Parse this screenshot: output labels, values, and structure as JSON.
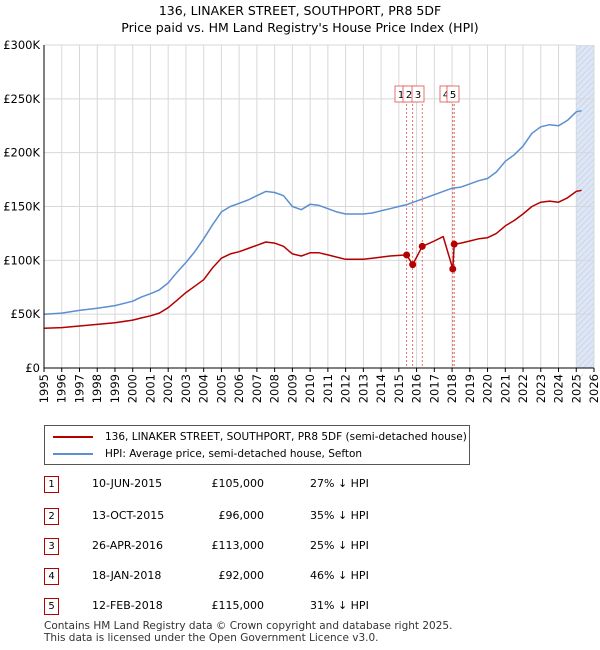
{
  "title": {
    "line1": "136, LINAKER STREET, SOUTHPORT, PR8 5DF",
    "line2": "Price paid vs. HM Land Registry's House Price Index (HPI)"
  },
  "colors": {
    "property": "#b50000",
    "hpi": "#5b8fd0",
    "shade": "#dde6f5",
    "grid": "#d8d8d8",
    "vline": "#e05050"
  },
  "chart_data": {
    "type": "line",
    "x_range": [
      1995,
      2026
    ],
    "y_range": [
      0,
      300000
    ],
    "y_ticks": [
      0,
      50000,
      100000,
      150000,
      200000,
      250000,
      300000
    ],
    "y_tick_labels": [
      "£0",
      "£50K",
      "£100K",
      "£150K",
      "£200K",
      "£250K",
      "£300K"
    ],
    "x_ticks": [
      1995,
      1996,
      1997,
      1998,
      1999,
      2000,
      2001,
      2002,
      2003,
      2004,
      2005,
      2006,
      2007,
      2008,
      2009,
      2010,
      2011,
      2012,
      2013,
      2014,
      2015,
      2016,
      2017,
      2018,
      2019,
      2020,
      2021,
      2022,
      2023,
      2024,
      2025,
      2026
    ],
    "x_tick_labels": [
      "1995",
      "1996",
      "1997",
      "1998",
      "1999",
      "2000",
      "2001",
      "2002",
      "2003",
      "2004",
      "2005",
      "2006",
      "2007",
      "2008",
      "2009",
      "2010",
      "2011",
      "2012",
      "2013",
      "2014",
      "2015",
      "2016",
      "2017",
      "2018",
      "2019",
      "2020",
      "2021",
      "2022",
      "2023",
      "2024",
      "2025",
      "2026"
    ],
    "grid": true,
    "shaded_future_from": 2025.0,
    "series": [
      {
        "name": "HPI: Average price, semi-detached house, Sefton",
        "color": "#5b8fd0",
        "points": [
          [
            1995.0,
            50000
          ],
          [
            1996.0,
            51000
          ],
          [
            1997.0,
            53500
          ],
          [
            1998.0,
            55500
          ],
          [
            1999.0,
            58000
          ],
          [
            2000.0,
            62000
          ],
          [
            2000.5,
            66000
          ],
          [
            2001.0,
            69000
          ],
          [
            2001.5,
            72500
          ],
          [
            2002.0,
            79000
          ],
          [
            2002.5,
            89000
          ],
          [
            2003.0,
            98000
          ],
          [
            2003.5,
            108000
          ],
          [
            2004.0,
            120000
          ],
          [
            2004.5,
            133000
          ],
          [
            2005.0,
            145000
          ],
          [
            2005.5,
            150000
          ],
          [
            2006.0,
            153000
          ],
          [
            2006.5,
            156000
          ],
          [
            2007.0,
            160000
          ],
          [
            2007.5,
            164000
          ],
          [
            2008.0,
            163000
          ],
          [
            2008.5,
            160000
          ],
          [
            2009.0,
            150000
          ],
          [
            2009.5,
            147000
          ],
          [
            2010.0,
            152000
          ],
          [
            2010.5,
            151000
          ],
          [
            2011.0,
            148000
          ],
          [
            2011.5,
            145000
          ],
          [
            2012.0,
            143000
          ],
          [
            2012.5,
            143000
          ],
          [
            2013.0,
            143000
          ],
          [
            2013.5,
            144000
          ],
          [
            2014.0,
            146000
          ],
          [
            2014.5,
            148000
          ],
          [
            2015.0,
            150000
          ],
          [
            2015.5,
            152000
          ],
          [
            2016.0,
            155000
          ],
          [
            2016.5,
            158000
          ],
          [
            2017.0,
            161000
          ],
          [
            2017.5,
            164000
          ],
          [
            2018.0,
            167000
          ],
          [
            2018.5,
            168000
          ],
          [
            2019.0,
            171000
          ],
          [
            2019.5,
            174000
          ],
          [
            2020.0,
            176000
          ],
          [
            2020.5,
            182000
          ],
          [
            2021.0,
            192000
          ],
          [
            2021.5,
            198000
          ],
          [
            2022.0,
            206000
          ],
          [
            2022.5,
            218000
          ],
          [
            2023.0,
            224000
          ],
          [
            2023.5,
            226000
          ],
          [
            2024.0,
            225000
          ],
          [
            2024.5,
            230000
          ],
          [
            2025.0,
            238000
          ],
          [
            2025.3,
            239000
          ]
        ]
      },
      {
        "name": "136, LINAKER STREET, SOUTHPORT, PR8 5DF (semi-detached house)",
        "color": "#b50000",
        "points": [
          [
            1995.0,
            37000
          ],
          [
            1996.0,
            37500
          ],
          [
            1997.0,
            39000
          ],
          [
            1998.0,
            40500
          ],
          [
            1999.0,
            42000
          ],
          [
            2000.0,
            44500
          ],
          [
            2000.5,
            46500
          ],
          [
            2001.0,
            48500
          ],
          [
            2001.5,
            51000
          ],
          [
            2002.0,
            56000
          ],
          [
            2002.5,
            63000
          ],
          [
            2003.0,
            70000
          ],
          [
            2003.5,
            76000
          ],
          [
            2004.0,
            82000
          ],
          [
            2004.5,
            93000
          ],
          [
            2005.0,
            102000
          ],
          [
            2005.5,
            106000
          ],
          [
            2006.0,
            108000
          ],
          [
            2006.5,
            111000
          ],
          [
            2007.0,
            114000
          ],
          [
            2007.5,
            117000
          ],
          [
            2008.0,
            116000
          ],
          [
            2008.5,
            113000
          ],
          [
            2009.0,
            106000
          ],
          [
            2009.5,
            104000
          ],
          [
            2010.0,
            107000
          ],
          [
            2010.5,
            107000
          ],
          [
            2011.0,
            105000
          ],
          [
            2011.5,
            103000
          ],
          [
            2012.0,
            101000
          ],
          [
            2012.5,
            101000
          ],
          [
            2013.0,
            101000
          ],
          [
            2013.5,
            102000
          ],
          [
            2014.0,
            103000
          ],
          [
            2014.5,
            104000
          ],
          [
            2015.44,
            105000
          ],
          [
            2015.78,
            96000
          ],
          [
            2016.32,
            113000
          ],
          [
            2016.6,
            115000
          ],
          [
            2017.0,
            118000
          ],
          [
            2017.5,
            122000
          ],
          [
            2018.04,
            92000
          ],
          [
            2018.12,
            115000
          ],
          [
            2018.5,
            116000
          ],
          [
            2019.0,
            118000
          ],
          [
            2019.5,
            120000
          ],
          [
            2020.0,
            121000
          ],
          [
            2020.5,
            125000
          ],
          [
            2021.0,
            132000
          ],
          [
            2021.5,
            137000
          ],
          [
            2022.0,
            143000
          ],
          [
            2022.5,
            150000
          ],
          [
            2023.0,
            154000
          ],
          [
            2023.5,
            155000
          ],
          [
            2024.0,
            154000
          ],
          [
            2024.5,
            158000
          ],
          [
            2025.0,
            164000
          ],
          [
            2025.3,
            165000
          ]
        ]
      }
    ],
    "sales": [
      {
        "id": "1",
        "date": "10-JUN-2015",
        "x": 2015.44,
        "price": 105000,
        "price_label": "£105,000",
        "hpi_diff": "27% ↓ HPI"
      },
      {
        "id": "2",
        "date": "13-OCT-2015",
        "x": 2015.78,
        "price": 96000,
        "price_label": "£96,000",
        "hpi_diff": "35% ↓ HPI"
      },
      {
        "id": "3",
        "date": "26-APR-2016",
        "x": 2016.32,
        "price": 113000,
        "price_label": "£113,000",
        "hpi_diff": "25% ↓ HPI"
      },
      {
        "id": "4",
        "date": "18-JAN-2018",
        "x": 2018.04,
        "price": 92000,
        "price_label": "£92,000",
        "hpi_diff": "46% ↓ HPI"
      },
      {
        "id": "5",
        "date": "12-FEB-2018",
        "x": 2018.12,
        "price": 115000,
        "price_label": "£115,000",
        "hpi_diff": "31% ↓ HPI"
      }
    ]
  },
  "legend": {
    "property_label": "136, LINAKER STREET, SOUTHPORT, PR8 5DF (semi-detached house)",
    "hpi_label": "HPI: Average price, semi-detached house, Sefton"
  },
  "footer": {
    "line1": "Contains HM Land Registry data © Crown copyright and database right 2025.",
    "line2": "This data is licensed under the Open Government Licence v3.0."
  }
}
